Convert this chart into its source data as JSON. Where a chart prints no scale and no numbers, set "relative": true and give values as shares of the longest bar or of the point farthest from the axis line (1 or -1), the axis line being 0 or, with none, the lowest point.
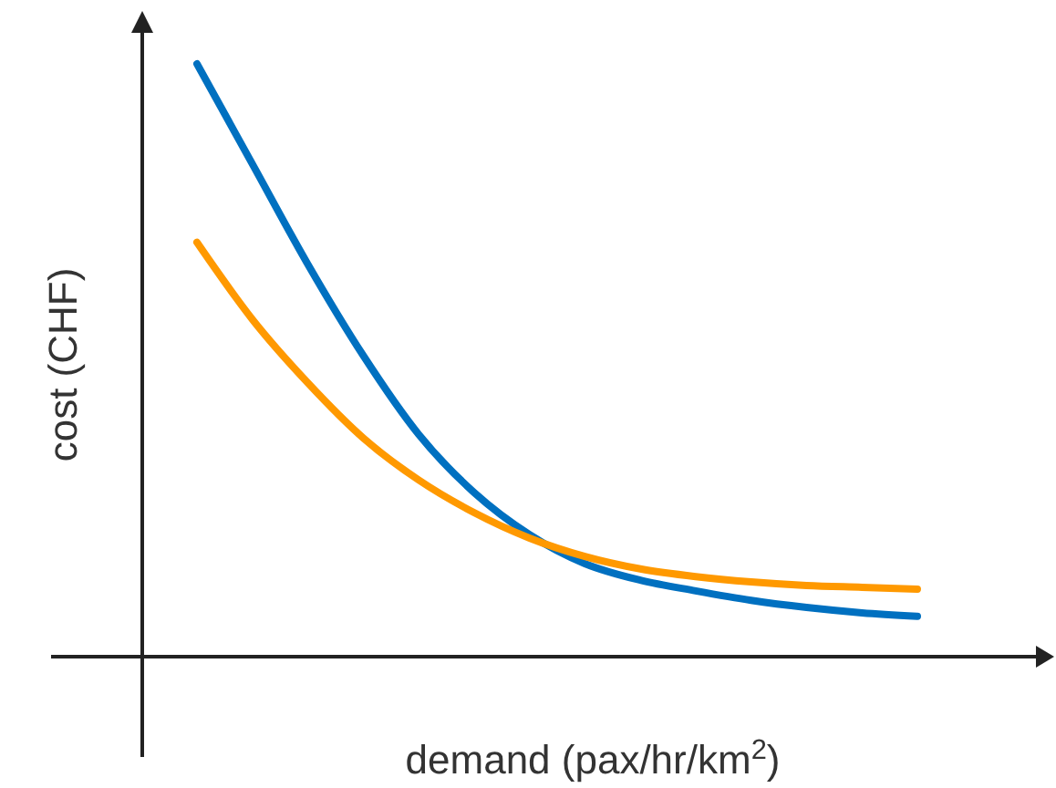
{
  "chart_data": {
    "type": "line",
    "relative": true,
    "xlabel": "demand (pax/hr/km$^{2}$)",
    "ylabel": "cost (CHF)",
    "categories": [
      null,
      null,
      null,
      null,
      null,
      null,
      null,
      null,
      null,
      null,
      null,
      null,
      null,
      null
    ],
    "series": [
      {
        "color": "#0070c0",
        "values": [
          1,
          0.831,
          0.662,
          0.508,
          0.375,
          0.277,
          0.206,
          0.157,
          0.129,
          0.111,
          0.095,
          0.083,
          0.074,
          0.068
        ]
      },
      {
        "color": "#ff9900",
        "values": [
          0.699,
          0.569,
          0.462,
          0.369,
          0.298,
          0.243,
          0.2,
          0.169,
          0.148,
          0.135,
          0.126,
          0.12,
          0.117,
          0.114
        ]
      }
    ]
  }
}
